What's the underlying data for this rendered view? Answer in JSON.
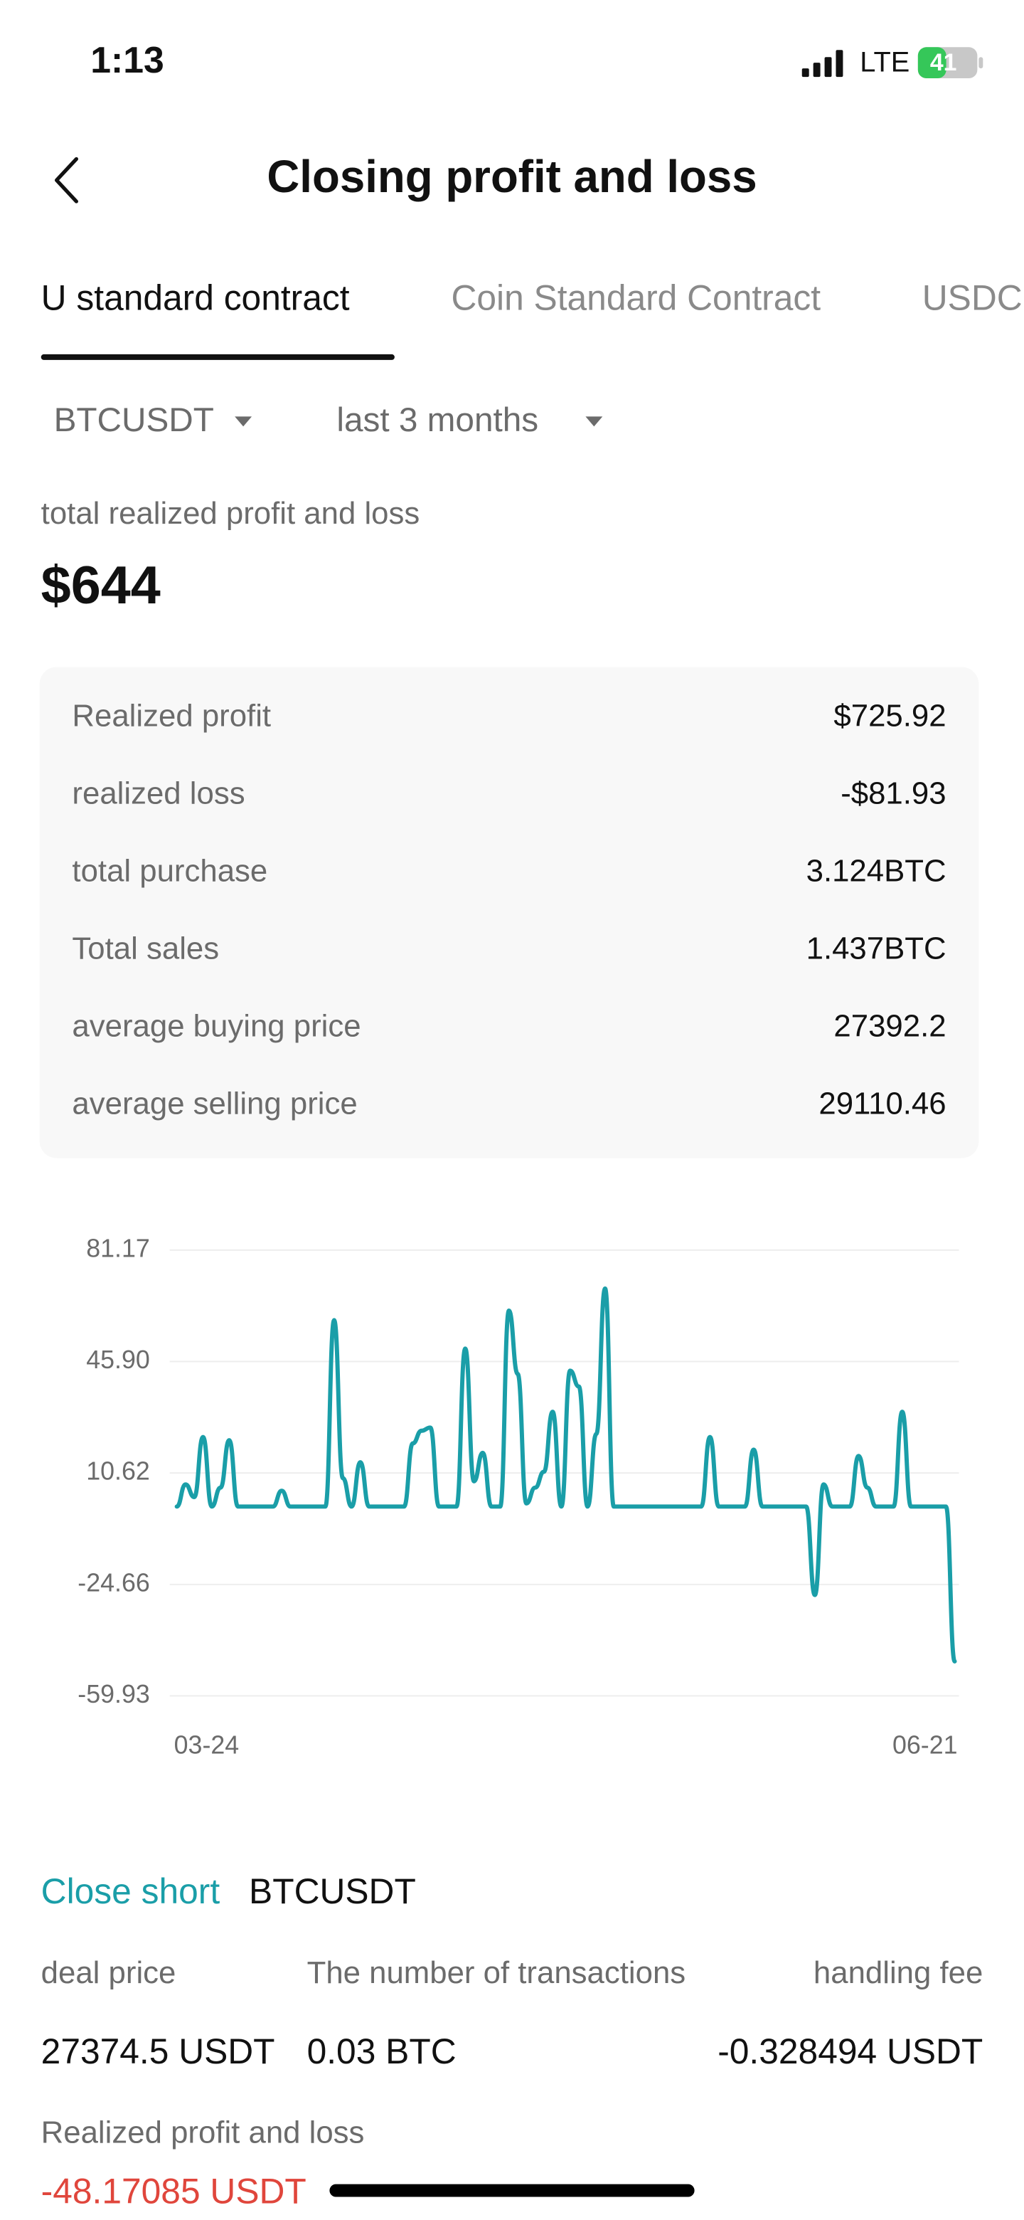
{
  "status_bar": {
    "time": "1:13",
    "network": "LTE",
    "battery": "41"
  },
  "header": {
    "title": "Closing profit and loss"
  },
  "tabs": [
    "U standard contract",
    "Coin Standard Contract",
    "USDC"
  ],
  "filters": [
    "BTCUSDT",
    "last 3 months"
  ],
  "summary": {
    "label": "total realized profit and loss",
    "value": "$644"
  },
  "details": [
    {
      "label": "Realized profit",
      "value": "$725.92"
    },
    {
      "label": "realized loss",
      "value": "-$81.93"
    },
    {
      "label": "total purchase",
      "value": "3.124BTC"
    },
    {
      "label": "Total sales",
      "value": "1.437BTC"
    },
    {
      "label": "average buying price",
      "value": "27392.2"
    },
    {
      "label": "average selling price",
      "value": "29110.46"
    }
  ],
  "chart_data": {
    "type": "line",
    "color": "#1a9ea8",
    "grid": true,
    "ylim": [
      -59.93,
      81.17
    ],
    "yticks": [
      -59.93,
      -24.66,
      10.62,
      {
        "value": 45.9,
        "label": "45.90"
      },
      81.17
    ],
    "categories": [
      "03-24",
      null,
      null,
      null,
      null,
      null,
      null,
      null,
      null,
      null,
      null,
      null,
      null,
      null,
      null,
      null,
      null,
      null,
      null,
      null,
      null,
      null,
      null,
      null,
      null,
      null,
      null,
      null,
      null,
      null,
      null,
      null,
      null,
      null,
      null,
      null,
      null,
      null,
      null,
      null,
      null,
      null,
      null,
      null,
      null,
      null,
      null,
      null,
      null,
      null,
      null,
      null,
      null,
      null,
      null,
      null,
      null,
      null,
      null,
      null,
      null,
      null,
      null,
      null,
      null,
      null,
      null,
      null,
      null,
      null,
      null,
      null,
      null,
      null,
      null,
      null,
      null,
      null,
      null,
      null,
      null,
      null,
      null,
      null,
      null,
      null,
      null,
      null,
      null,
      "06-21"
    ],
    "values": [
      0,
      7,
      3,
      22,
      0,
      6,
      21,
      0,
      0,
      0,
      0,
      0,
      5,
      0,
      0,
      0,
      0,
      0,
      59,
      9,
      0,
      14,
      0,
      0,
      0,
      0,
      0,
      20,
      24,
      25,
      0,
      0,
      0,
      50,
      8,
      17,
      0,
      0,
      62,
      42,
      1,
      6,
      11,
      30,
      0,
      43,
      38,
      0,
      23,
      69,
      0,
      0,
      0,
      0,
      0,
      0,
      0,
      0,
      0,
      0,
      0,
      22,
      0,
      0,
      0,
      0,
      18,
      0,
      0,
      0,
      0,
      0,
      0,
      -28,
      7,
      0,
      0,
      0,
      16,
      6,
      0,
      0,
      0,
      30,
      0,
      0,
      0,
      0,
      0,
      -49
    ]
  },
  "transaction": {
    "action": "Close short",
    "symbol": "BTCUSDT",
    "columns": [
      {
        "label": "deal price",
        "value": "27374.5 USDT"
      },
      {
        "label": "The number of transactions",
        "value": "0.03 BTC"
      },
      {
        "label": "handling fee",
        "value": "-0.328494 USDT"
      }
    ],
    "pnl_label": "Realized profit and loss",
    "pnl_value": "-48.17085 USDT"
  }
}
